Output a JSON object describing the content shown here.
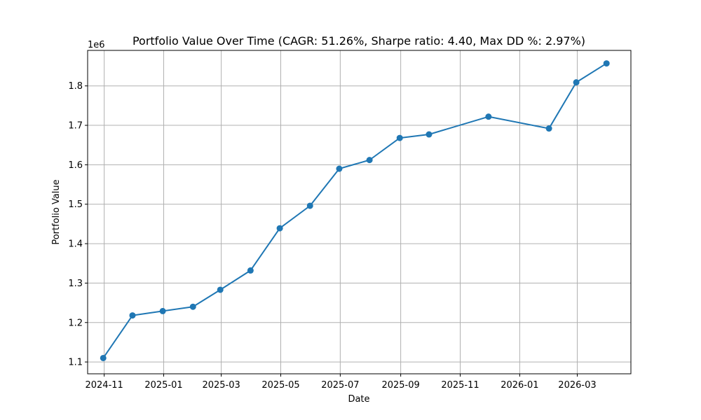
{
  "chart_data": {
    "type": "line",
    "title": "Portfolio Value Over Time (CAGR: 51.26%, Sharpe ratio: 4.40, Max DD %: 2.97%)",
    "xlabel": "Date",
    "ylabel": "Portfolio Value",
    "y_offset_label": "1e6",
    "grid": true,
    "marker": "circle",
    "xlim": [
      "2024-10-15",
      "2026-04-25"
    ],
    "ylim": [
      1.07,
      1.89
    ],
    "y_unit_multiplier": 1000000,
    "x_ticks": [
      "2024-11-01",
      "2025-01-01",
      "2025-03-01",
      "2025-05-01",
      "2025-07-01",
      "2025-09-01",
      "2025-11-01",
      "2026-01-01",
      "2026-03-01"
    ],
    "x_tick_labels": [
      "2024-11",
      "2025-01",
      "2025-03",
      "2025-05",
      "2025-07",
      "2025-09",
      "2025-11",
      "2026-01",
      "2026-03"
    ],
    "y_ticks": [
      1.1,
      1.2,
      1.3,
      1.4,
      1.5,
      1.6,
      1.7,
      1.8
    ],
    "y_tick_labels": [
      "1.1",
      "1.2",
      "1.3",
      "1.4",
      "1.5",
      "1.6",
      "1.7",
      "1.8"
    ],
    "series": [
      {
        "color": "#1f77b4",
        "points": [
          {
            "x": "2024-10-31",
            "y": 1.11
          },
          {
            "x": "2024-11-30",
            "y": 1.218
          },
          {
            "x": "2024-12-31",
            "y": 1.229
          },
          {
            "x": "2025-01-31",
            "y": 1.24
          },
          {
            "x": "2025-02-28",
            "y": 1.283
          },
          {
            "x": "2025-03-31",
            "y": 1.332
          },
          {
            "x": "2025-04-30",
            "y": 1.439
          },
          {
            "x": "2025-05-31",
            "y": 1.496
          },
          {
            "x": "2025-06-30",
            "y": 1.59
          },
          {
            "x": "2025-07-31",
            "y": 1.612
          },
          {
            "x": "2025-08-31",
            "y": 1.668
          },
          {
            "x": "2025-09-30",
            "y": 1.677
          },
          {
            "x": "2025-11-30",
            "y": 1.722
          },
          {
            "x": "2026-01-31",
            "y": 1.692
          },
          {
            "x": "2026-02-28",
            "y": 1.809
          },
          {
            "x": "2026-03-31",
            "y": 1.857
          }
        ]
      }
    ]
  }
}
